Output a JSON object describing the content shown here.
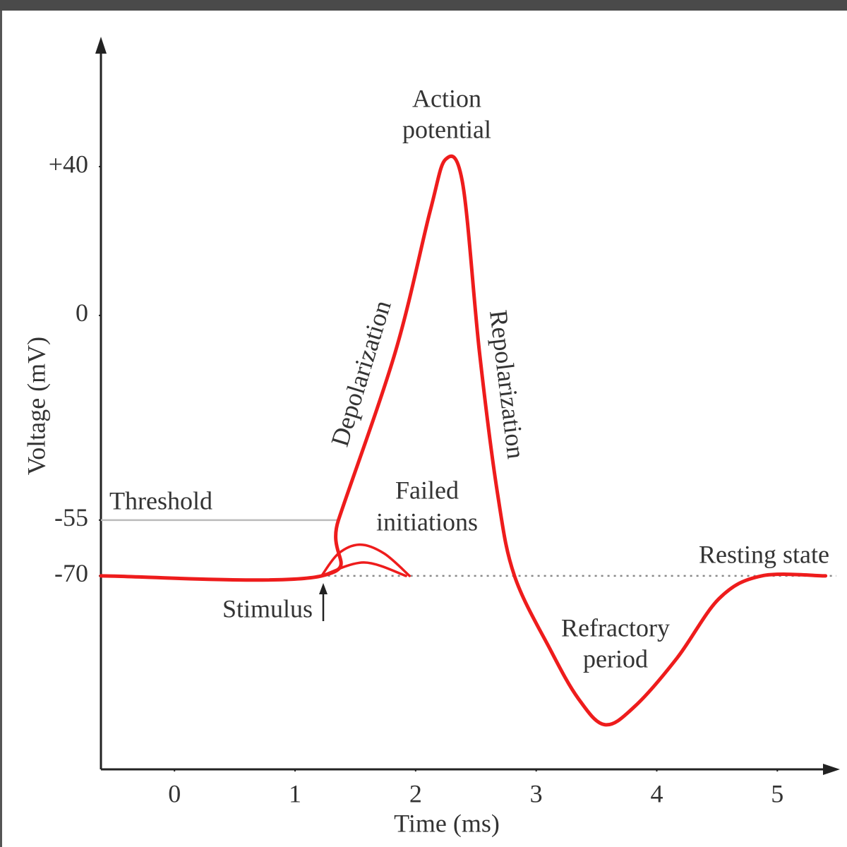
{
  "chart_data": {
    "type": "line",
    "x_label": "Time (ms)",
    "y_label": "Voltage (mV)",
    "xlim": [
      -0.61,
      5.49
    ],
    "ylim": [
      -122,
      73.4
    ],
    "xticks": [
      0,
      1,
      2,
      3,
      4,
      5
    ],
    "yticks": [
      {
        "value": 40,
        "label": "+40"
      },
      0,
      -55,
      -70
    ],
    "series": [
      {
        "name": "Action potential",
        "color": "#ee1c1c",
        "x": [
          -0.61,
          1.22,
          1.36,
          1.83,
          2.12,
          2.25,
          2.39,
          2.53,
          2.68,
          2.82,
          3.12,
          3.35,
          3.57,
          3.82,
          4.17,
          4.52,
          4.87,
          5.4
        ],
        "values": [
          -70,
          -70,
          -55,
          -10,
          28,
          42,
          35.5,
          -10,
          -48,
          -70,
          -90,
          -103,
          -110,
          -105,
          -92,
          -76,
          -70,
          -70
        ]
      },
      {
        "name": "Failed initiations",
        "color": "#ee1c1c",
        "x": [
          1.22,
          1.36,
          1.54,
          1.74,
          1.95
        ],
        "values": [
          -70,
          -64,
          -61.6,
          -64,
          -70
        ]
      },
      {
        "name": "Failed initiations",
        "color": "#ee1c1c",
        "x": [
          1.22,
          1.57,
          1.92
        ],
        "values": [
          -70,
          -66.4,
          -70
        ]
      }
    ],
    "hlines": [
      {
        "value": -55,
        "x": [
          -0.61,
          1.36
        ],
        "color": "#bbbbbb",
        "style": "solid"
      },
      {
        "value": -70,
        "x": [
          1.22,
          5.49
        ],
        "color": "#888888",
        "style": "dotted"
      }
    ],
    "annotations": [
      {
        "text": [
          "Action",
          "potential"
        ]
      },
      {
        "text": [
          "Depolarization"
        ]
      },
      {
        "text": [
          "Repolarization"
        ]
      },
      {
        "text": [
          "Failed",
          "initiations"
        ]
      },
      {
        "text": [
          "Threshold"
        ]
      },
      {
        "text": [
          "Resting state"
        ]
      },
      {
        "text": [
          "Stimulus"
        ]
      },
      {
        "text": [
          "Refractory",
          "period"
        ]
      }
    ]
  }
}
